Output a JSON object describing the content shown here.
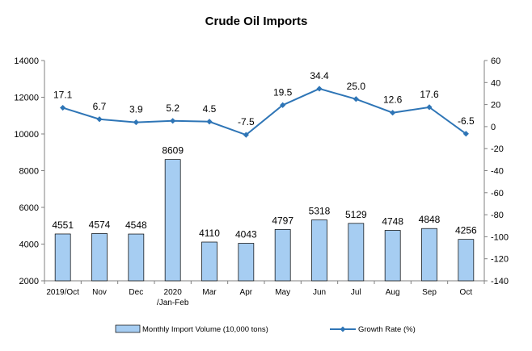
{
  "chart_data": {
    "type": "bar",
    "title": "Crude Oil Imports",
    "categories": [
      "2019/Oct",
      "Nov",
      "Dec",
      "2020 /Jan-Feb",
      "Mar",
      "Apr",
      "May",
      "Jun",
      "Jul",
      "Aug",
      "Sep",
      "Oct"
    ],
    "category_lines": [
      [
        "2019/Oct"
      ],
      [
        "Nov"
      ],
      [
        "Dec"
      ],
      [
        "2020",
        "/Jan-Feb"
      ],
      [
        "Mar"
      ],
      [
        "Apr"
      ],
      [
        "May"
      ],
      [
        "Jun"
      ],
      [
        "Jul"
      ],
      [
        "Aug"
      ],
      [
        "Sep"
      ],
      [
        "Oct"
      ]
    ],
    "series": [
      {
        "name": "Monthly Import Volume (10,000 tons)",
        "type": "bar",
        "axis": "left",
        "color": "#a6cdf2",
        "values": [
          4551,
          4574,
          4548,
          8609,
          4110,
          4043,
          4797,
          5318,
          5129,
          4748,
          4848,
          4256
        ],
        "labels": [
          "4551",
          "4574",
          "4548",
          "8609",
          "4110",
          "4043",
          "4797",
          "5318",
          "5129",
          "4748",
          "4848",
          "4256"
        ]
      },
      {
        "name": "Growth Rate (%)",
        "type": "line",
        "axis": "right",
        "color": "#2e75b6",
        "values": [
          17.1,
          6.7,
          3.9,
          5.2,
          4.5,
          -7.5,
          19.5,
          34.4,
          25.0,
          12.6,
          17.6,
          -6.5
        ],
        "labels": [
          "17.1",
          "6.7",
          "3.9",
          "5.2",
          "4.5",
          "-7.5",
          "19.5",
          "34.4",
          "25.0",
          "12.6",
          "17.6",
          "-6.5"
        ]
      }
    ],
    "y_left": {
      "ylim": [
        2000,
        14000
      ],
      "ticks": [
        "2000",
        "4000",
        "6000",
        "8000",
        "10000",
        "12000",
        "14000"
      ]
    },
    "y_right": {
      "ylim": [
        -140,
        60
      ],
      "ticks": [
        "-140",
        "-120",
        "-100",
        "-80",
        "-60",
        "-40",
        "-20",
        "0",
        "20",
        "40",
        "60"
      ]
    },
    "grid": false,
    "legend_position": "bottom"
  }
}
